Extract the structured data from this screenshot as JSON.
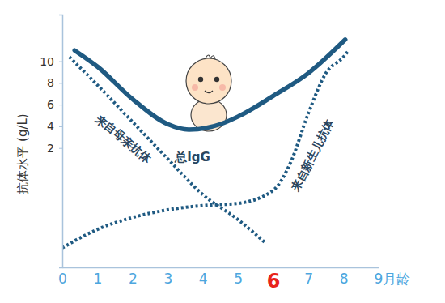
{
  "chart_data": {
    "type": "line",
    "y_label": "抗体水平 (g/L)",
    "xlim": [
      0,
      9
    ],
    "ylim": [
      -9,
      14.3
    ],
    "xticks": [
      0,
      1,
      2,
      3,
      4,
      5,
      6,
      7,
      8,
      {
        "value": 9,
        "label": "9月龄"
      }
    ],
    "yticks": [
      2,
      4,
      6,
      8,
      10
    ],
    "grid": false,
    "series": [
      {
        "name": "总IgG",
        "color": "#1f5a82",
        "line_style": "solid",
        "x": [
          0.35,
          1,
          2,
          3,
          3.6,
          4.5,
          5,
          6,
          7,
          8.05
        ],
        "values": [
          11.0,
          9.5,
          6.5,
          4.2,
          3.7,
          4.2,
          4.9,
          6.8,
          8.9,
          12.0
        ]
      },
      {
        "name": "来自母亲抗体",
        "color": "#1f5a82",
        "line_style": "dotted",
        "x": [
          0.2,
          1,
          2,
          3,
          4,
          5,
          5.8
        ],
        "values": [
          10.4,
          7.8,
          4.4,
          1.0,
          -2.3,
          -4.6,
          -6.8
        ]
      },
      {
        "name": "来自新生儿抗体",
        "color": "#1f5a82",
        "line_style": "dotted",
        "x": [
          0.0,
          1,
          2,
          3,
          4,
          5,
          6,
          6.5,
          7,
          7.5,
          8,
          8.15
        ],
        "values": [
          -7.2,
          -5.5,
          -4.4,
          -3.7,
          -3.3,
          -3.1,
          -1.9,
          0.7,
          5.2,
          8.9,
          10.4,
          11.0
        ]
      }
    ]
  }
}
